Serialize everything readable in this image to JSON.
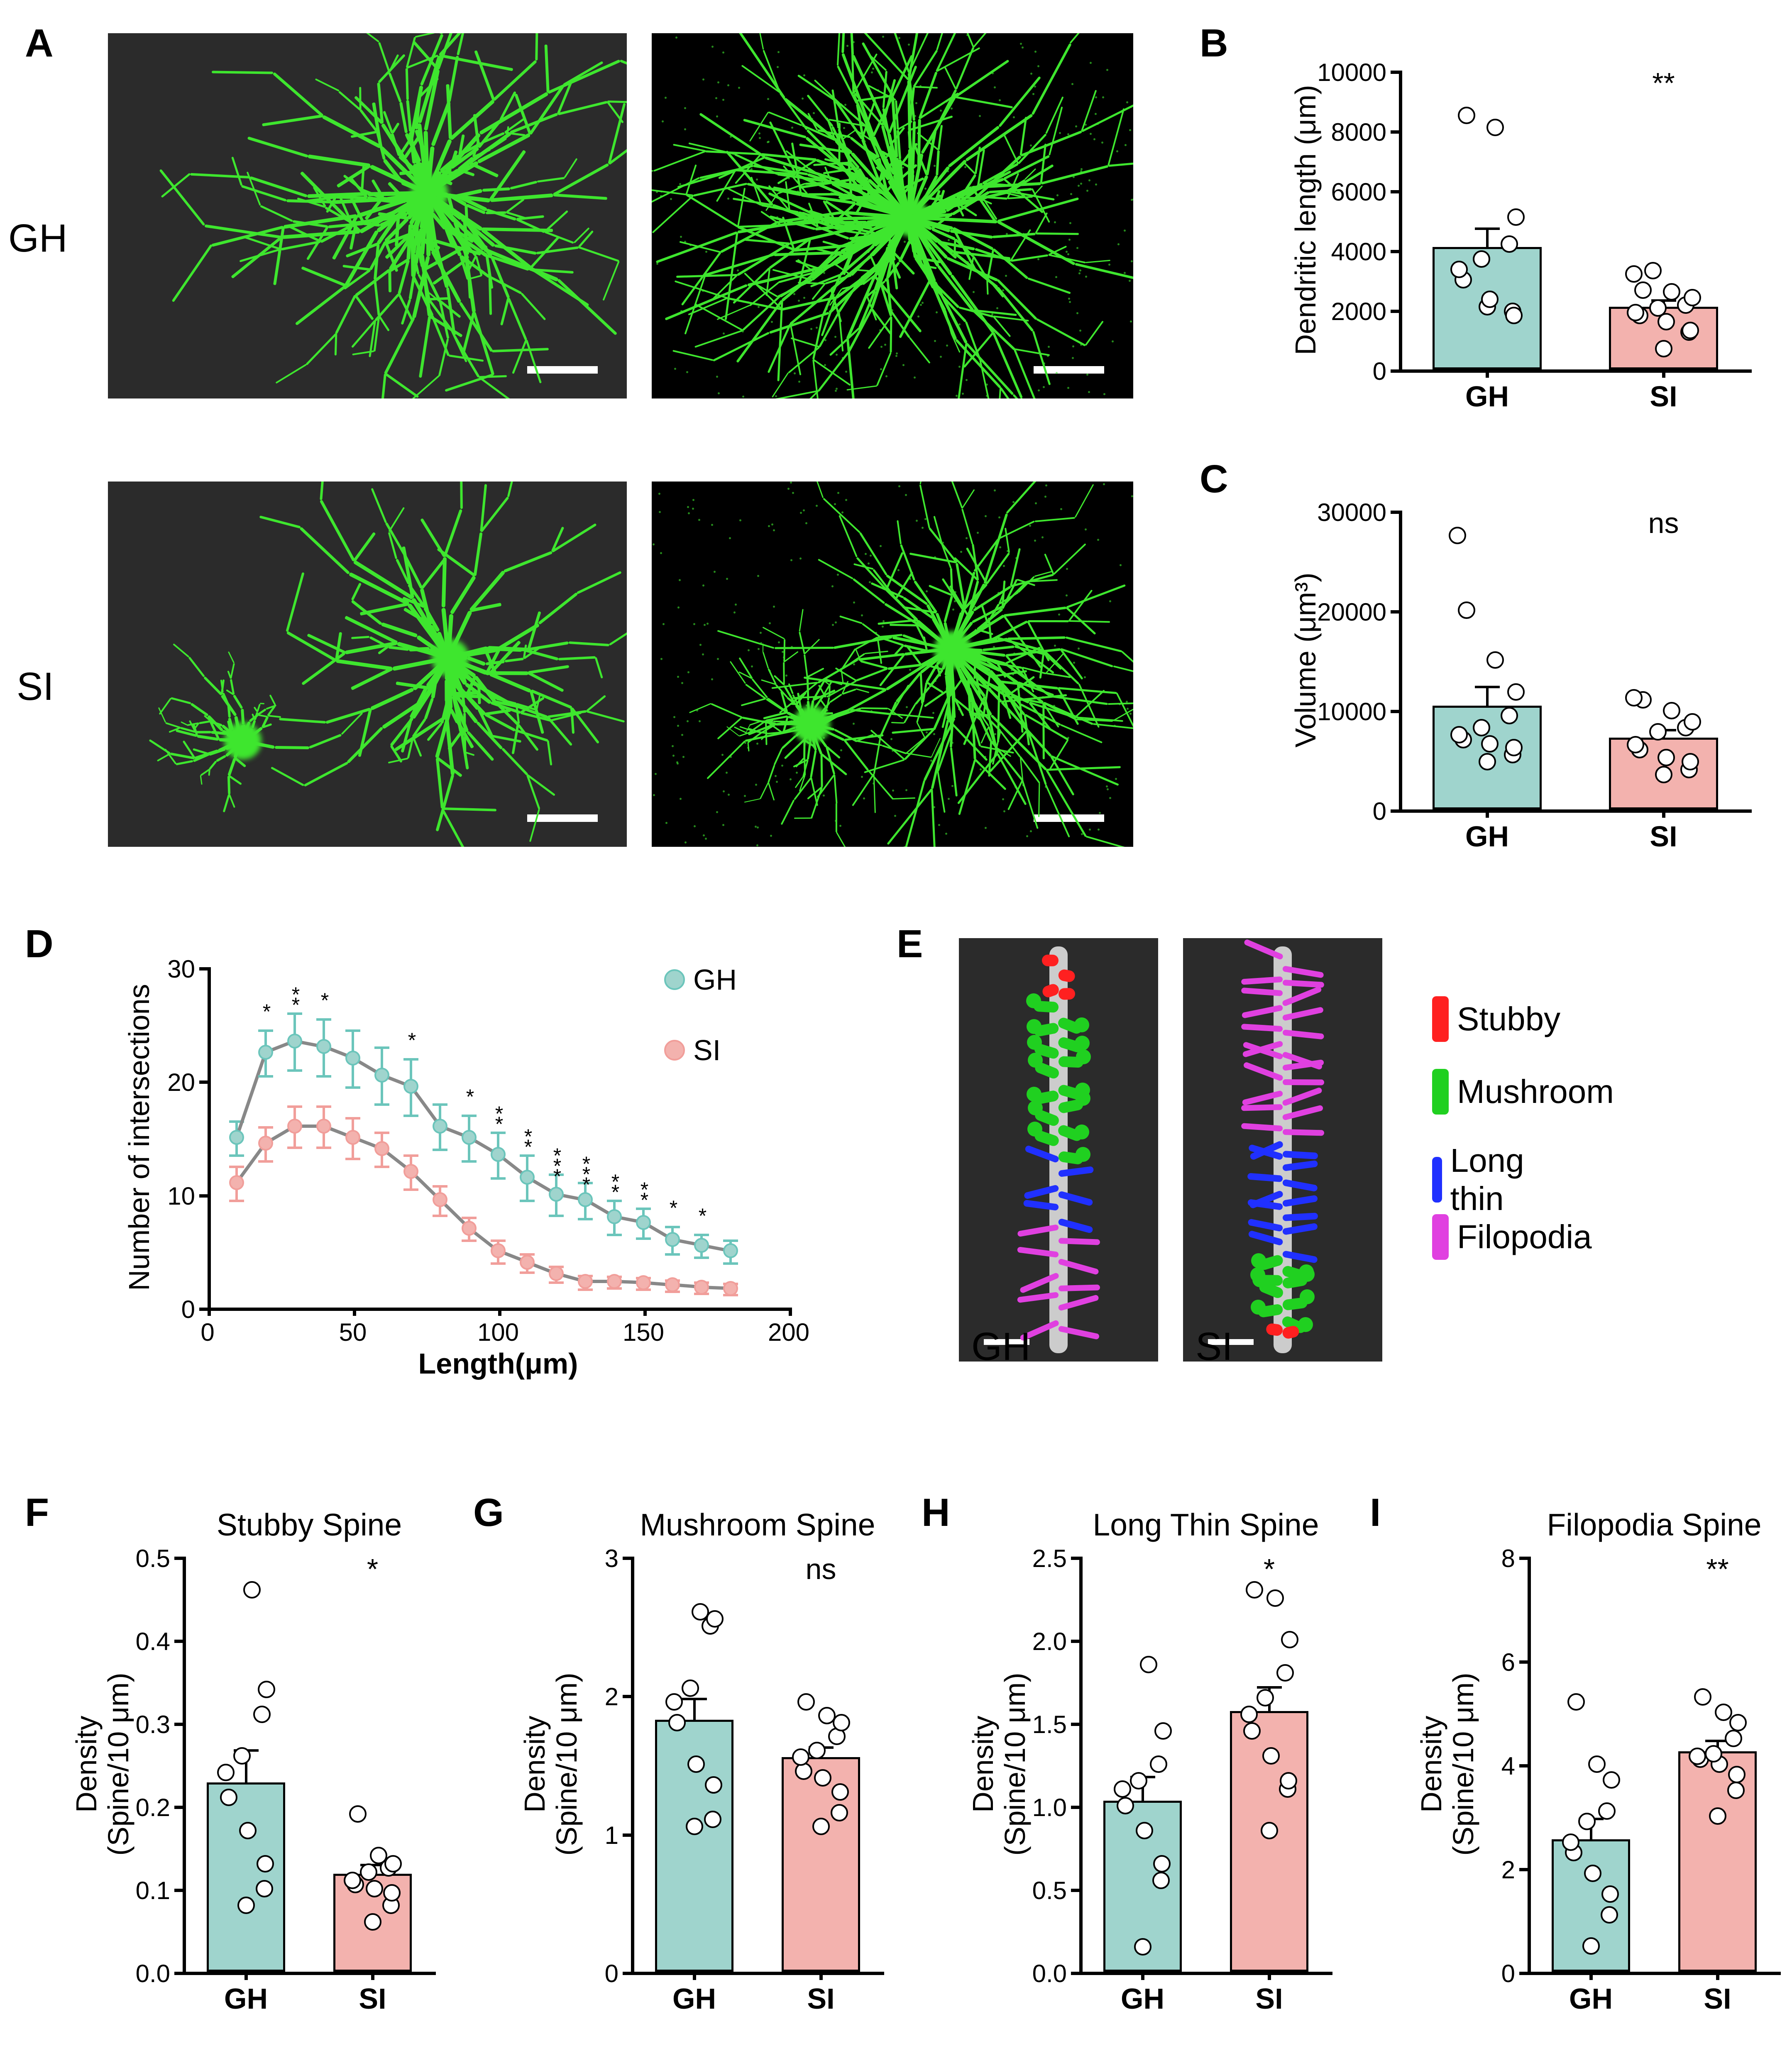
{
  "colors": {
    "gh": "#9fd4cd",
    "si": "#f3b2ae",
    "gh_line": "#6bc5bb",
    "si_line": "#f19e9a",
    "neuron_green": "#3ee62e",
    "spine_stubby": "#ff2020",
    "spine_mushroom": "#20d020",
    "spine_longthin": "#2030ff",
    "spine_filopodia": "#e040e0",
    "axis": "#000000",
    "point_fill": "#ffffff"
  },
  "panelA": {
    "label": "A",
    "rows": [
      "GH",
      "SI"
    ]
  },
  "panelB": {
    "label": "B",
    "title": "",
    "ylabel": "Dendritic length (μm)",
    "ylim": [
      0,
      10000
    ],
    "ytick_step": 2000,
    "categories": [
      "GH",
      "SI"
    ],
    "values": [
      4100,
      2100
    ],
    "errors": [
      650,
      250
    ],
    "sig": "**",
    "points": {
      "GH": [
        2100,
        1950,
        1800,
        2350,
        3000,
        3350,
        3700,
        4200,
        5100,
        8100,
        8500
      ],
      "SI": [
        700,
        1250,
        1300,
        1600,
        1800,
        1900,
        2050,
        2150,
        2400,
        2600,
        2650,
        3200,
        3300
      ]
    }
  },
  "panelC": {
    "label": "C",
    "ylabel": "Volume (μm³)",
    "ylim": [
      0,
      30000
    ],
    "ytick_step": 10000,
    "categories": [
      "GH",
      "SI"
    ],
    "values": [
      10400,
      7200
    ],
    "errors": [
      2000,
      900
    ],
    "sig": "ns",
    "points": {
      "GH": [
        4800,
        5500,
        6200,
        6600,
        7000,
        7500,
        8200,
        9400,
        11800,
        15000,
        20000,
        27500
      ],
      "SI": [
        3500,
        4000,
        4800,
        5200,
        6000,
        6500,
        7800,
        8200,
        8800,
        9900,
        11000,
        11200
      ]
    }
  },
  "panelD": {
    "label": "D",
    "xlabel": "Length(μm)",
    "ylabel": "Number of intersections",
    "xlim": [
      0,
      200
    ],
    "ylim": [
      0,
      30
    ],
    "xtick_step": 50,
    "ytick_step": 10,
    "legend": [
      "GH",
      "SI"
    ],
    "x": [
      10,
      20,
      30,
      40,
      50,
      60,
      70,
      80,
      90,
      100,
      110,
      120,
      130,
      140,
      150,
      160,
      170,
      180
    ],
    "gh_y": [
      15,
      22.5,
      23.5,
      23,
      22,
      20.5,
      19.5,
      16,
      15,
      13.5,
      11.5,
      10,
      9.5,
      8,
      7.5,
      6,
      5.5,
      5
    ],
    "si_y": [
      11,
      14.5,
      16,
      16,
      15,
      14,
      12,
      9.5,
      7,
      5,
      4,
      3,
      2.3,
      2.3,
      2.2,
      2,
      1.8,
      1.7
    ],
    "gh_err": [
      1.5,
      2,
      2.5,
      2.5,
      2.5,
      2.5,
      2.5,
      2,
      2,
      2,
      2,
      1.8,
      1.6,
      1.5,
      1.3,
      1.2,
      1,
      1
    ],
    "si_err": [
      1.5,
      1.5,
      1.8,
      1.8,
      1.8,
      1.5,
      1.5,
      1.3,
      1,
      1,
      0.8,
      0.7,
      0.6,
      0.5,
      0.5,
      0.5,
      0.5,
      0.5
    ],
    "sig": [
      "",
      "*",
      "**",
      "*",
      "",
      "",
      "*",
      "",
      "*",
      "**",
      "**",
      "***",
      "***",
      "**",
      "**",
      "*",
      "*",
      ""
    ]
  },
  "panelE": {
    "label": "E",
    "imgs": [
      "GH",
      "SI"
    ],
    "legend": [
      {
        "name": "Stubby",
        "color": "#ff2020"
      },
      {
        "name": "Mushroom",
        "color": "#20d020"
      },
      {
        "name": "Long thin",
        "color": "#2030ff"
      },
      {
        "name": "Filopodia",
        "color": "#e040e0"
      }
    ]
  },
  "panelF": {
    "label": "F",
    "title": "Stubby Spine",
    "ylabel": "Density\n(Spine/10 μm)",
    "ylim": [
      0,
      0.5
    ],
    "ytick_step": 0.1,
    "categories": [
      "GH",
      "SI"
    ],
    "values": [
      0.228,
      0.118
    ],
    "errors": [
      0.04,
      0.012
    ],
    "sig": "*",
    "points": {
      "GH": [
        0.08,
        0.1,
        0.13,
        0.17,
        0.21,
        0.24,
        0.26,
        0.31,
        0.34,
        0.46
      ],
      "SI": [
        0.06,
        0.08,
        0.095,
        0.1,
        0.105,
        0.11,
        0.12,
        0.125,
        0.13,
        0.14,
        0.19
      ]
    }
  },
  "panelG": {
    "label": "G",
    "title": "Mushroom Spine",
    "ylabel": "Density\n(Spine/10 μm)",
    "ylim": [
      0,
      3
    ],
    "ytick_step": 1,
    "categories": [
      "GH",
      "SI"
    ],
    "values": [
      1.82,
      1.55
    ],
    "errors": [
      0.16,
      0.08
    ],
    "sig": "ns",
    "points": {
      "GH": [
        1.05,
        1.1,
        1.35,
        1.5,
        1.8,
        1.95,
        2.05,
        2.5,
        2.55,
        2.6
      ],
      "SI": [
        1.05,
        1.15,
        1.3,
        1.4,
        1.45,
        1.55,
        1.6,
        1.7,
        1.8,
        1.85,
        1.95
      ]
    }
  },
  "panelH": {
    "label": "H",
    "title": "Long Thin Spine",
    "ylabel": "Density\n(Spine/10 μm)",
    "ylim": [
      0,
      2.5
    ],
    "ytick_step": 0.5,
    "categories": [
      "GH",
      "SI"
    ],
    "values": [
      1.03,
      1.57
    ],
    "errors": [
      0.15,
      0.15
    ],
    "sig": "*",
    "points": {
      "GH": [
        0.15,
        0.55,
        0.65,
        0.85,
        1.0,
        1.1,
        1.15,
        1.25,
        1.45,
        1.85
      ],
      "SI": [
        0.85,
        1.1,
        1.15,
        1.3,
        1.45,
        1.55,
        1.65,
        1.8,
        2.0,
        2.25,
        2.3
      ]
    }
  },
  "panelI": {
    "label": "I",
    "title": "Filopodia Spine",
    "ylabel": "Density\n(Spine/10 μm)",
    "ylim": [
      0,
      8
    ],
    "ytick_step": 2,
    "categories": [
      "GH",
      "SI"
    ],
    "values": [
      2.55,
      4.25
    ],
    "errors": [
      0.42,
      0.22
    ],
    "sig": "**",
    "points": {
      "GH": [
        0.5,
        1.1,
        1.5,
        1.9,
        2.3,
        2.5,
        2.9,
        3.1,
        3.7,
        4.0,
        5.2
      ],
      "SI": [
        3.0,
        3.5,
        3.8,
        4.0,
        4.1,
        4.15,
        4.2,
        4.5,
        4.8,
        5.0,
        5.3
      ]
    }
  },
  "geometry": {
    "panel_label_fontsize": 95,
    "row_label_fontsize": 95,
    "axis_label_fontsize": 70,
    "tick_fontsize": 60,
    "sig_fontsize": 70,
    "chart_title_fontsize": 75,
    "legend_fontsize": 80,
    "axis_width": 8,
    "bar_border": 5,
    "point_size": 42,
    "marker_size": 36
  }
}
